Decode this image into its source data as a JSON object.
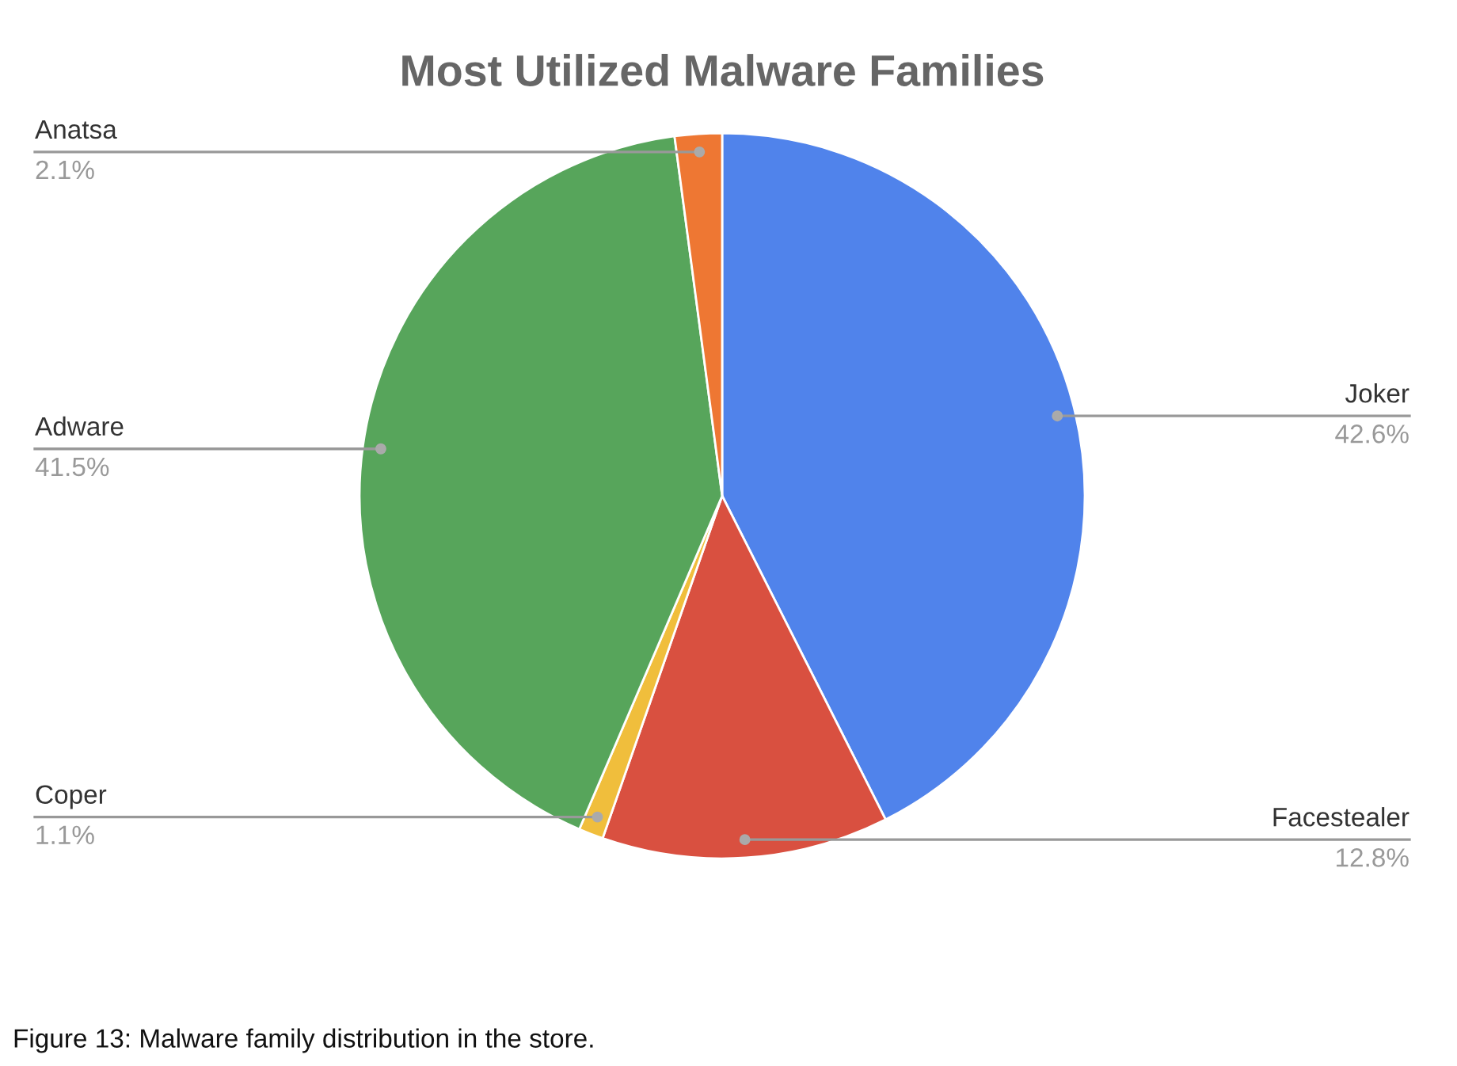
{
  "chart_data": {
    "type": "pie",
    "title": "Most Utilized Malware Families",
    "categories": [
      "Joker",
      "Facestealer",
      "Coper",
      "Adware",
      "Anatsa"
    ],
    "values": [
      42.6,
      12.8,
      1.1,
      41.5,
      2.1
    ],
    "colors": [
      "#5083eb",
      "#d95040",
      "#f0be3c",
      "#57a55b",
      "#ee7733"
    ],
    "value_labels": [
      "42.6%",
      "12.8%",
      "1.1%",
      "41.5%",
      "2.1%"
    ],
    "annotations": [
      "Figure 13: Malware family distribution in the store."
    ],
    "legend": false
  }
}
